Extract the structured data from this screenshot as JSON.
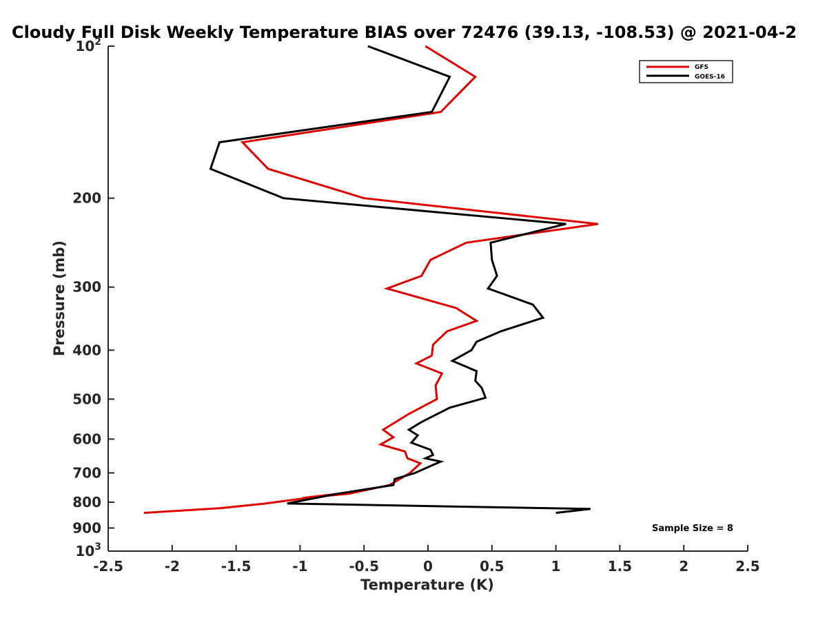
{
  "chart_data": {
    "type": "line",
    "title": "Cloudy Full Disk Weekly Temperature BIAS over 72476 (39.13, -108.53) @ 2021-04-2",
    "xlabel": "Temperature (K)",
    "ylabel": "Pressure (mb)",
    "xlim": [
      -2.5,
      2.5
    ],
    "ylim": [
      100,
      1000
    ],
    "y_scale": "log",
    "y_reversed": true,
    "x_ticks": [
      -2.5,
      -2,
      -1.5,
      -1,
      -0.5,
      0,
      0.5,
      1,
      1.5,
      2,
      2.5
    ],
    "x_tick_labels": [
      "-2.5",
      "-2",
      "-1.5",
      "-1",
      "-0.5",
      "0",
      "0.5",
      "1",
      "1.5",
      "2",
      "2.5"
    ],
    "y_ticks": [
      100,
      200,
      300,
      400,
      500,
      600,
      700,
      800,
      900,
      1000
    ],
    "y_tick_labels": [
      {
        "base": "10",
        "exp": "2"
      },
      {
        "base": "200",
        "exp": ""
      },
      {
        "base": "300",
        "exp": ""
      },
      {
        "base": "400",
        "exp": ""
      },
      {
        "base": "500",
        "exp": ""
      },
      {
        "base": "600",
        "exp": ""
      },
      {
        "base": "700",
        "exp": ""
      },
      {
        "base": "800",
        "exp": ""
      },
      {
        "base": "900",
        "exp": ""
      },
      {
        "base": "10",
        "exp": "3"
      }
    ],
    "grid": false,
    "legend_position": "top-right",
    "series": [
      {
        "name": "GFS",
        "color": "#e00000",
        "points": [
          [
            -0.02,
            100
          ],
          [
            0.37,
            115
          ],
          [
            0.1,
            135
          ],
          [
            -1.45,
            155
          ],
          [
            -1.25,
            175
          ],
          [
            -0.5,
            200
          ],
          [
            1.33,
            225
          ],
          [
            0.3,
            245
          ],
          [
            0.02,
            265
          ],
          [
            -0.05,
            285
          ],
          [
            -0.32,
            302
          ],
          [
            0.22,
            330
          ],
          [
            0.38,
            350
          ],
          [
            0.15,
            367
          ],
          [
            0.04,
            390
          ],
          [
            0.03,
            410
          ],
          [
            -0.09,
            425
          ],
          [
            0.11,
            445
          ],
          [
            0.06,
            470
          ],
          [
            0.07,
            500
          ],
          [
            -0.15,
            535
          ],
          [
            -0.35,
            575
          ],
          [
            -0.27,
            595
          ],
          [
            -0.37,
            615
          ],
          [
            -0.18,
            635
          ],
          [
            -0.16,
            655
          ],
          [
            -0.06,
            670
          ],
          [
            -0.14,
            700
          ],
          [
            -0.3,
            740
          ],
          [
            -0.62,
            770
          ],
          [
            -0.98,
            785
          ],
          [
            -0.7,
            770
          ],
          [
            -1.27,
            805
          ],
          [
            -1.62,
            822
          ],
          [
            -2.22,
            840
          ]
        ]
      },
      {
        "name": "GOES-16",
        "color": "#000000",
        "points": [
          [
            -0.47,
            100
          ],
          [
            0.17,
            115
          ],
          [
            0.03,
            135
          ],
          [
            -1.63,
            155
          ],
          [
            -1.7,
            175
          ],
          [
            -1.13,
            200
          ],
          [
            1.08,
            225
          ],
          [
            0.49,
            245
          ],
          [
            0.5,
            265
          ],
          [
            0.54,
            285
          ],
          [
            0.47,
            302
          ],
          [
            0.82,
            325
          ],
          [
            0.9,
            345
          ],
          [
            0.57,
            367
          ],
          [
            0.38,
            385
          ],
          [
            0.34,
            400
          ],
          [
            0.19,
            420
          ],
          [
            0.38,
            440
          ],
          [
            0.37,
            460
          ],
          [
            0.42,
            475
          ],
          [
            0.45,
            497
          ],
          [
            0.17,
            520
          ],
          [
            -0.05,
            555
          ],
          [
            -0.15,
            575
          ],
          [
            -0.08,
            590
          ],
          [
            -0.13,
            610
          ],
          [
            0.02,
            630
          ],
          [
            0.04,
            645
          ],
          [
            -0.02,
            655
          ],
          [
            0.1,
            665
          ],
          [
            0.01,
            680
          ],
          [
            -0.1,
            700
          ],
          [
            -0.26,
            720
          ],
          [
            -0.27,
            740
          ],
          [
            -0.42,
            750
          ],
          [
            -0.71,
            770
          ],
          [
            -1.1,
            805
          ],
          [
            1.27,
            825
          ],
          [
            1.0,
            840
          ]
        ]
      }
    ],
    "annotation": "Sample Size = 8"
  }
}
